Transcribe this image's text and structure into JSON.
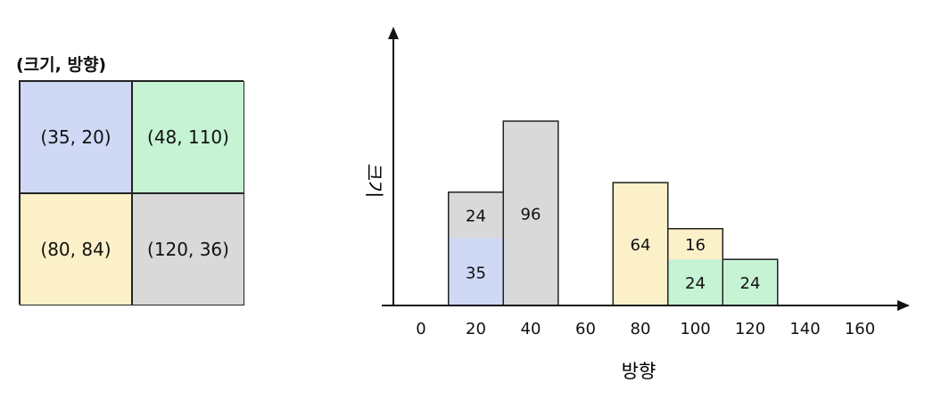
{
  "grid": {
    "title": "(크기, 방향)",
    "cells": [
      {
        "label": "(35, 20)",
        "color": "#cfd9f6"
      },
      {
        "label": "(48, 110)",
        "color": "#c6f3d4"
      },
      {
        "label": "(80, 84)",
        "color": "#fcf0c9"
      },
      {
        "label": "(120, 36)",
        "color": "#d9d9d9"
      }
    ]
  },
  "chart_data": {
    "type": "bar",
    "xlabel": "방향",
    "ylabel": "크기",
    "x_ticks": [
      "0",
      "20",
      "40",
      "60",
      "80",
      "100",
      "120",
      "140",
      "160"
    ],
    "bins": [
      {
        "x": 20,
        "segments": [
          {
            "value": 35,
            "label": "35",
            "color": "#cfd9f6"
          },
          {
            "value": 24,
            "label": "24",
            "color": "#d9d9d9"
          }
        ]
      },
      {
        "x": 40,
        "segments": [
          {
            "value": 96,
            "label": "96",
            "color": "#d9d9d9"
          }
        ]
      },
      {
        "x": 80,
        "segments": [
          {
            "value": 64,
            "label": "64",
            "color": "#fcf0c9"
          }
        ]
      },
      {
        "x": 100,
        "segments": [
          {
            "value": 24,
            "label": "24",
            "color": "#c6f3d4"
          },
          {
            "value": 16,
            "label": "16",
            "color": "#fcf0c9"
          }
        ]
      },
      {
        "x": 120,
        "segments": [
          {
            "value": 24,
            "label": "24",
            "color": "#c6f3d4"
          }
        ]
      }
    ]
  }
}
